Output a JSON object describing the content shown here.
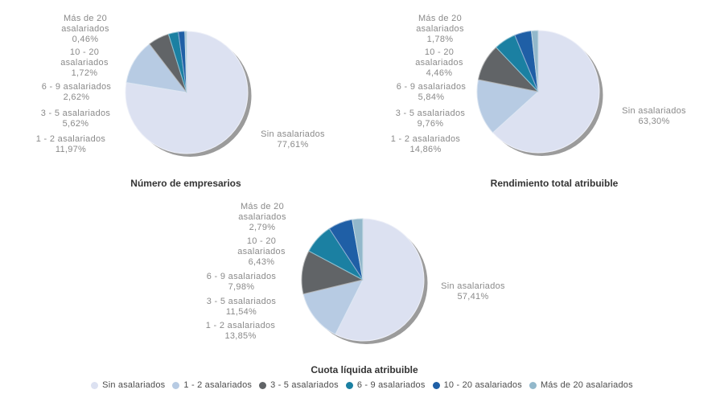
{
  "page": {
    "language": "es",
    "background_color": "#ffffff",
    "label_color": "#8a8a8a",
    "title_color": "#333333",
    "shadow_color": "#9b9b9b"
  },
  "category_line_breaks": {
    "10 - 20 asalariados": [
      "10 - 20",
      "asalariados"
    ],
    "Más de 20 asalariados": [
      "Más de 20",
      "asalariados"
    ]
  },
  "legend": {
    "position": "bottom-center",
    "items": [
      {
        "label": "Sin asalariados",
        "color": "#dce1f1"
      },
      {
        "label": "1 - 2 asalariados",
        "color": "#b7cbe3"
      },
      {
        "label": "3 - 5 asalariados",
        "color": "#616467"
      },
      {
        "label": "6 - 9 asalariados",
        "color": "#1b80a2"
      },
      {
        "label": "10 - 20 asalariados",
        "color": "#1f5fa6"
      },
      {
        "label": "Más de 20 asalariados",
        "color": "#92b8cb"
      }
    ]
  },
  "chart_data": [
    {
      "type": "pie",
      "title": "Número de empresarios",
      "categories": [
        "Sin asalariados",
        "1 - 2 asalariados",
        "3 - 5 asalariados",
        "6 - 9 asalariados",
        "10 - 20 asalariados",
        "Más de 20 asalariados"
      ],
      "values": [
        77.61,
        11.97,
        5.62,
        2.62,
        1.72,
        0.46
      ],
      "display_values": [
        "77,61%",
        "11,97%",
        "5,62%",
        "2,62%",
        "1,72%",
        "0,46%"
      ],
      "colors": [
        "#dce1f1",
        "#b7cbe3",
        "#616467",
        "#1b80a2",
        "#1f5fa6",
        "#92b8cb"
      ],
      "start_angle_deg": 0,
      "direction": "clockwise",
      "grid": false
    },
    {
      "type": "pie",
      "title": "Rendimiento total atribuible",
      "categories": [
        "Sin asalariados",
        "1 - 2 asalariados",
        "3 - 5 asalariados",
        "6 - 9 asalariados",
        "10 - 20 asalariados",
        "Más de 20 asalariados"
      ],
      "values": [
        63.3,
        14.86,
        9.76,
        5.84,
        4.46,
        1.78
      ],
      "display_values": [
        "63,30%",
        "14,86%",
        "9,76%",
        "5,84%",
        "4,46%",
        "1,78%"
      ],
      "colors": [
        "#dce1f1",
        "#b7cbe3",
        "#616467",
        "#1b80a2",
        "#1f5fa6",
        "#92b8cb"
      ],
      "start_angle_deg": 0,
      "direction": "clockwise",
      "grid": false
    },
    {
      "type": "pie",
      "title": "Cuota líquida atribuible",
      "categories": [
        "Sin asalariados",
        "1 - 2 asalariados",
        "3 - 5 asalariados",
        "6 - 9 asalariados",
        "10 - 20 asalariados",
        "Más de 20 asalariados"
      ],
      "values": [
        57.41,
        13.85,
        11.54,
        7.98,
        6.43,
        2.79
      ],
      "display_values": [
        "57,41%",
        "13,85%",
        "11,54%",
        "7,98%",
        "6,43%",
        "2,79%"
      ],
      "colors": [
        "#dce1f1",
        "#b7cbe3",
        "#616467",
        "#1b80a2",
        "#1f5fa6",
        "#92b8cb"
      ],
      "start_angle_deg": 0,
      "direction": "clockwise",
      "grid": false
    }
  ]
}
